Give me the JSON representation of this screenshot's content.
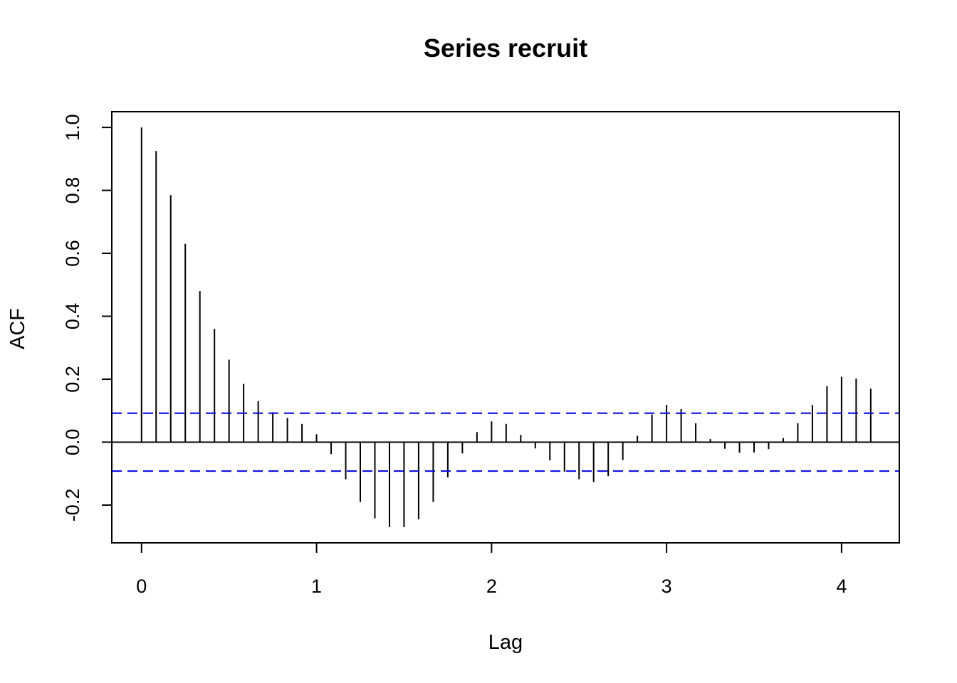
{
  "chart_data": {
    "type": "bar",
    "title": "Series  recruit",
    "xlabel": "Lag",
    "ylabel": "ACF",
    "xlim": [
      -0.17,
      4.33
    ],
    "ylim": [
      -0.32,
      1.05
    ],
    "xticks": [
      0,
      1,
      2,
      3,
      4
    ],
    "xtick_labels": [
      "0",
      "1",
      "2",
      "3",
      "4"
    ],
    "yticks": [
      -0.2,
      0.0,
      0.2,
      0.4,
      0.6,
      0.8,
      1.0
    ],
    "ytick_labels": [
      "-0.2",
      "0.0",
      "0.2",
      "0.4",
      "0.6",
      "0.8",
      "1.0"
    ],
    "grid": false,
    "confidence_bound": 0.092,
    "series_color": "#000000",
    "bound_color": "#0000dd",
    "lags": [
      0,
      0.0833,
      0.1667,
      0.25,
      0.3333,
      0.4167,
      0.5,
      0.5833,
      0.6667,
      0.75,
      0.8333,
      0.9167,
      1.0,
      1.0833,
      1.1667,
      1.25,
      1.3333,
      1.4167,
      1.5,
      1.5833,
      1.6667,
      1.75,
      1.8333,
      1.9167,
      2.0,
      2.0833,
      2.1667,
      2.25,
      2.3333,
      2.4167,
      2.5,
      2.5833,
      2.6667,
      2.75,
      2.8333,
      2.9167,
      3.0,
      3.0833,
      3.1667,
      3.25,
      3.3333,
      3.4167,
      3.5,
      3.5833,
      3.6667,
      3.75,
      3.8333,
      3.9167,
      4.0,
      4.0833,
      4.1667
    ],
    "values": [
      1.0,
      0.925,
      0.785,
      0.63,
      0.48,
      0.36,
      0.262,
      0.185,
      0.13,
      0.095,
      0.077,
      0.058,
      0.025,
      -0.038,
      -0.118,
      -0.19,
      -0.242,
      -0.27,
      -0.27,
      -0.245,
      -0.19,
      -0.112,
      -0.036,
      0.032,
      0.066,
      0.058,
      0.023,
      -0.02,
      -0.058,
      -0.094,
      -0.118,
      -0.127,
      -0.108,
      -0.057,
      0.02,
      0.088,
      0.118,
      0.105,
      0.06,
      0.01,
      -0.021,
      -0.034,
      -0.033,
      -0.022,
      0.013,
      0.06,
      0.118,
      0.178,
      0.208,
      0.202,
      0.17
    ]
  }
}
